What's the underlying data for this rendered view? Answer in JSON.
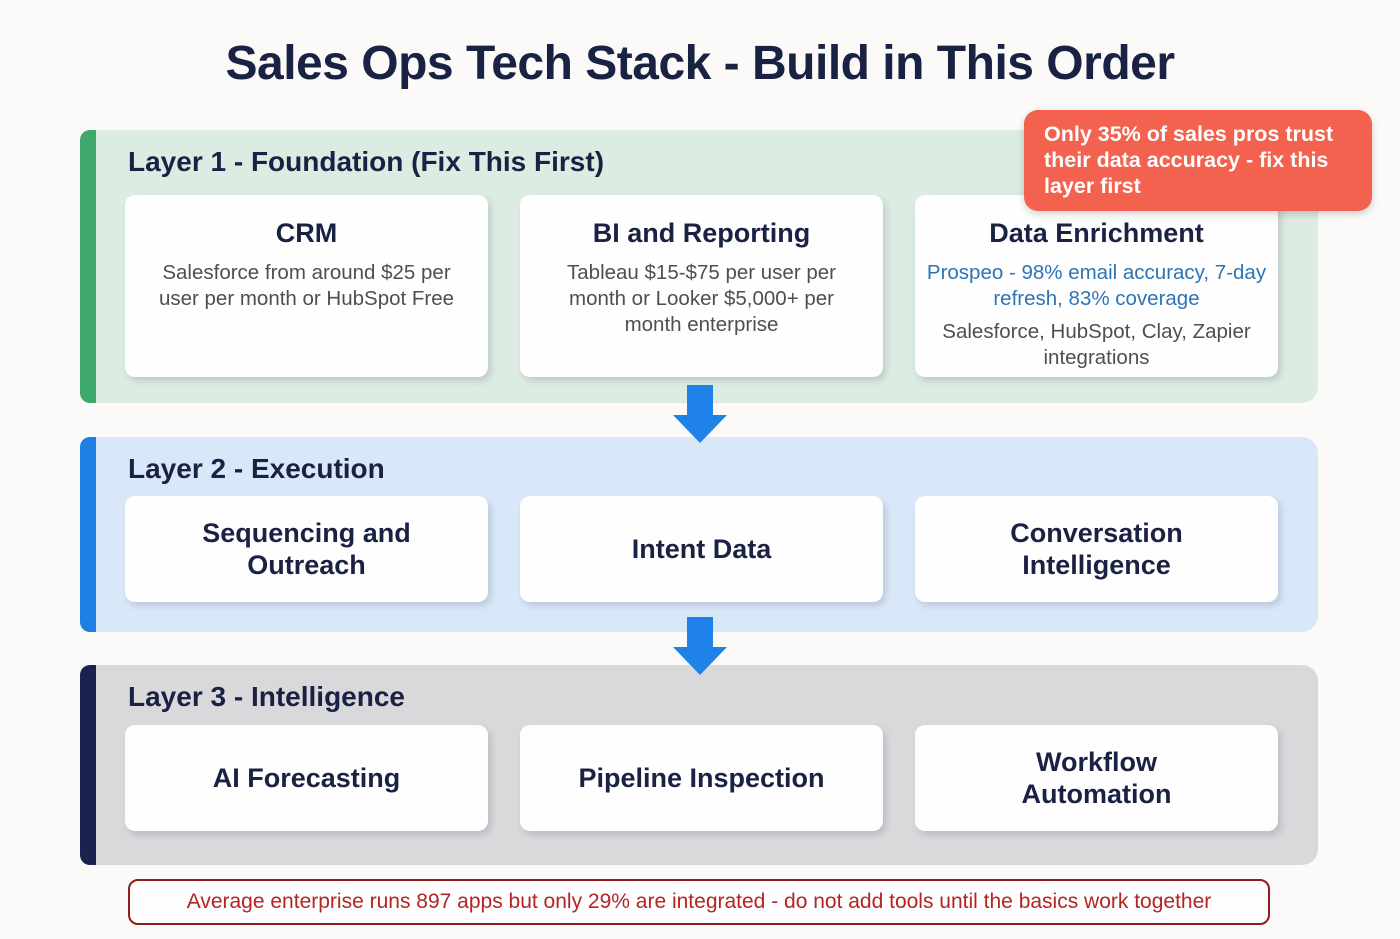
{
  "page": {
    "title": "Sales Ops Tech Stack - Build in This Order"
  },
  "callout": {
    "text": "Only 35% of sales pros trust their data accuracy - fix this layer first"
  },
  "layers": [
    {
      "label": "Layer 1 - Foundation (Fix This First)",
      "cards": [
        {
          "title": "CRM",
          "desc": "Salesforce from around $25 per user per month or HubSpot Free"
        },
        {
          "title": "BI and Reporting",
          "desc": "Tableau $15-$75 per user per month or Looker $5,000+ per month enterprise"
        },
        {
          "title": "Data Enrichment",
          "highlight": "Prospeo - 98% email accuracy, 7-day refresh, 83% coverage",
          "desc": "Salesforce, HubSpot, Clay, Zapier integrations"
        }
      ]
    },
    {
      "label": "Layer 2 - Execution",
      "cards": [
        {
          "title": "Sequencing and Outreach"
        },
        {
          "title": "Intent Data"
        },
        {
          "title": "Conversation Intelligence"
        }
      ]
    },
    {
      "label": "Layer 3 - Intelligence",
      "cards": [
        {
          "title": "AI Forecasting"
        },
        {
          "title": "Pipeline Inspection"
        },
        {
          "title": "Workflow Automation"
        }
      ]
    }
  ],
  "footer": {
    "text": "Average enterprise runs 897 apps but only 29% are integrated - do not add tools until the basics work together"
  },
  "colors": {
    "page_bg": "#fbfaf8",
    "title_text": "#1a2243",
    "layer1_accent": "#3fa96c",
    "layer1_bg": "#dcece2",
    "layer2_accent": "#1e7fe3",
    "layer2_bg": "#d9e8f8",
    "layer3_accent": "#1a2350",
    "layer3_bg": "#d9d9dc",
    "card_bg": "#fefefe",
    "card_desc_text": "#4f4f4f",
    "highlight_text": "#2e74b5",
    "arrow": "#1e82e8",
    "callout_bg": "#f2624e",
    "callout_text": "#ffffff",
    "footer_border": "#8f1d1d",
    "footer_text": "#b32424"
  }
}
